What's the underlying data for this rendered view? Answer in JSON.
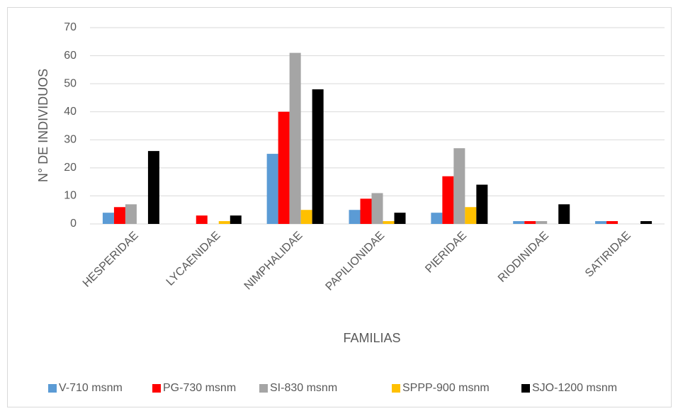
{
  "chart_data": {
    "type": "bar",
    "y_label": "N° DE INDIVIDUOS",
    "x_label": "FAMILIAS",
    "categories": [
      "HESPERIDAE",
      "LYCAENIDAE",
      "NIMPHALIDAE",
      "PAPILIONIDAE",
      "PIERIDAE",
      "RIODINIDAE",
      "SATIRIDAE"
    ],
    "series": [
      {
        "name": "V-710 msnm",
        "color": "#5b9bd5",
        "values": [
          4,
          0,
          25,
          5,
          4,
          1,
          1
        ]
      },
      {
        "name": "PG-730 msnm",
        "color": "#ff0000",
        "values": [
          6,
          3,
          40,
          9,
          17,
          1,
          1
        ]
      },
      {
        "name": "SI-830 msnm",
        "color": "#a5a5a5",
        "values": [
          7,
          0,
          61,
          11,
          27,
          1,
          0
        ]
      },
      {
        "name": "SPPP-900 msnm",
        "color": "#ffc000",
        "values": [
          0,
          1,
          5,
          1,
          6,
          0,
          0
        ]
      },
      {
        "name": "SJO-1200 msnm",
        "color": "#000000",
        "values": [
          26,
          3,
          48,
          4,
          14,
          7,
          1
        ]
      }
    ],
    "ylim": [
      0,
      70
    ],
    "yticks": [
      0,
      10,
      20,
      30,
      40,
      50,
      60,
      70
    ],
    "grid": true,
    "legend": "bottom"
  }
}
